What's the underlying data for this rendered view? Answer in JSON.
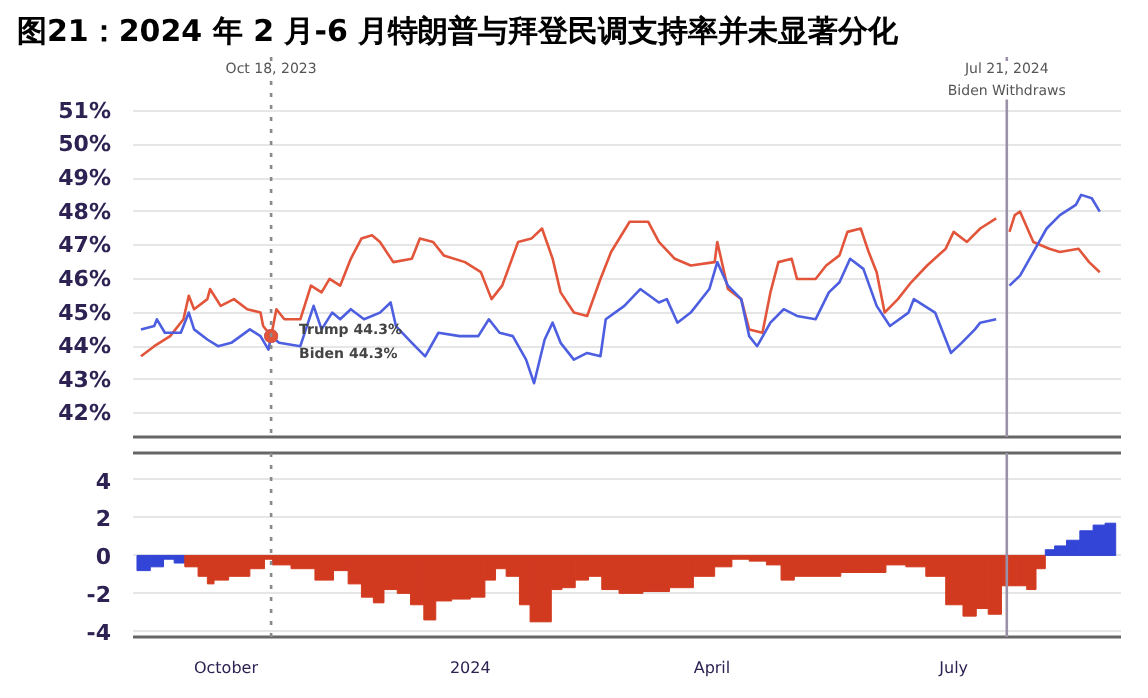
{
  "chart_data": [
    {
      "type": "line",
      "title": "图21：2024 年 2 月-6 月特朗普与拜登民调支持率并未显著分化",
      "xlim": [
        "2023-08-27",
        "2024-09-02"
      ],
      "ylim": [
        41.3,
        52.6
      ],
      "yticks": [
        {
          "value": 42,
          "label": "42%"
        },
        {
          "value": 43,
          "label": "43%"
        },
        {
          "value": 44,
          "label": "44%"
        },
        {
          "value": 45,
          "label": "45%"
        },
        {
          "value": 46,
          "label": "46%"
        },
        {
          "value": 47,
          "label": "47%"
        },
        {
          "value": 48,
          "label": "48%"
        },
        {
          "value": 49,
          "label": "49%"
        },
        {
          "value": 50,
          "label": "50%"
        },
        {
          "value": 51,
          "label": "51%"
        }
      ],
      "grid": "y",
      "tick_labels": "y",
      "series": [
        {
          "color": "#e2553a",
          "x": [
            "2023-08-30",
            "2023-09-04",
            "2023-09-10",
            "2023-09-15",
            "2023-09-17",
            "2023-09-19",
            "2023-09-24",
            "2023-09-25",
            "2023-09-29",
            "2023-10-04",
            "2023-10-09",
            "2023-10-14",
            "2023-10-15",
            "2023-10-18",
            "2023-10-20",
            "2023-10-23",
            "2023-10-29",
            "2023-11-02",
            "2023-11-06",
            "2023-11-09",
            "2023-11-13",
            "2023-11-17",
            "2023-11-21",
            "2023-11-25",
            "2023-11-28",
            "2023-12-03",
            "2023-12-10",
            "2023-12-13",
            "2023-12-18",
            "2023-12-22",
            "2023-12-30",
            "2024-01-05",
            "2024-01-09",
            "2024-01-13",
            "2024-01-19",
            "2024-01-24",
            "2024-01-28",
            "2024-02-01",
            "2024-02-04",
            "2024-02-09",
            "2024-02-14",
            "2024-02-19",
            "2024-02-23",
            "2024-03-01",
            "2024-03-08",
            "2024-03-12",
            "2024-03-18",
            "2024-03-24",
            "2024-04-02",
            "2024-04-03",
            "2024-04-07",
            "2024-04-12",
            "2024-04-15",
            "2024-04-20",
            "2024-04-23",
            "2024-04-26",
            "2024-05-01",
            "2024-05-03",
            "2024-05-10",
            "2024-05-14",
            "2024-05-19",
            "2024-05-22",
            "2024-05-27",
            "2024-05-30",
            "2024-06-02",
            "2024-06-05",
            "2024-06-10",
            "2024-06-15",
            "2024-06-21",
            "2024-06-28",
            "2024-07-01",
            "2024-07-06",
            "2024-07-11",
            "2024-07-17",
            "2024-07-21",
            "2024-07-22",
            "2024-07-24",
            "2024-07-26",
            "2024-07-31",
            "2024-08-06",
            "2024-08-10",
            "2024-08-17",
            "2024-08-21",
            "2024-08-25"
          ],
          "values": [
            43.7,
            44.0,
            44.3,
            44.8,
            45.5,
            45.1,
            45.4,
            45.7,
            45.2,
            45.4,
            45.1,
            45.0,
            44.6,
            44.3,
            45.1,
            44.8,
            44.8,
            45.8,
            45.6,
            46.0,
            45.8,
            46.6,
            47.2,
            47.3,
            47.1,
            46.5,
            46.6,
            47.2,
            47.1,
            46.7,
            46.5,
            46.2,
            45.4,
            45.8,
            47.1,
            47.2,
            47.5,
            46.6,
            45.6,
            45.0,
            44.9,
            46.0,
            46.8,
            47.7,
            47.7,
            47.1,
            46.6,
            46.4,
            46.5,
            47.1,
            45.7,
            45.4,
            44.5,
            44.4,
            45.6,
            46.5,
            46.6,
            46.0,
            46.0,
            46.4,
            46.7,
            47.4,
            47.5,
            46.8,
            46.2,
            45.0,
            45.4,
            45.9,
            46.4,
            46.9,
            47.4,
            47.1,
            47.5,
            47.8,
            null,
            47.4,
            47.9,
            48.0,
            47.1,
            46.9,
            46.8,
            46.9,
            46.5,
            46.2
          ]
        },
        {
          "color": "#4d5fe0",
          "x": [
            "2023-08-30",
            "2023-09-04",
            "2023-09-05",
            "2023-09-08",
            "2023-09-14",
            "2023-09-17",
            "2023-09-19",
            "2023-09-24",
            "2023-09-28",
            "2023-10-03",
            "2023-10-10",
            "2023-10-14",
            "2023-10-17",
            "2023-10-18",
            "2023-10-21",
            "2023-10-29",
            "2023-11-03",
            "2023-11-06",
            "2023-11-10",
            "2023-11-13",
            "2023-11-17",
            "2023-11-22",
            "2023-11-28",
            "2023-12-02",
            "2023-12-04",
            "2023-12-10",
            "2023-12-15",
            "2023-12-20",
            "2023-12-28",
            "2024-01-04",
            "2024-01-08",
            "2024-01-12",
            "2024-01-17",
            "2024-01-22",
            "2024-01-25",
            "2024-01-29",
            "2024-02-01",
            "2024-02-04",
            "2024-02-09",
            "2024-02-14",
            "2024-02-19",
            "2024-02-21",
            "2024-02-28",
            "2024-03-05",
            "2024-03-12",
            "2024-03-15",
            "2024-03-19",
            "2024-03-24",
            "2024-03-31",
            "2024-04-03",
            "2024-04-07",
            "2024-04-12",
            "2024-04-15",
            "2024-04-18",
            "2024-04-23",
            "2024-04-28",
            "2024-05-03",
            "2024-05-10",
            "2024-05-15",
            "2024-05-19",
            "2024-05-23",
            "2024-05-28",
            "2024-06-02",
            "2024-06-07",
            "2024-06-14",
            "2024-06-16",
            "2024-06-24",
            "2024-06-30",
            "2024-07-04",
            "2024-07-09",
            "2024-07-11",
            "2024-07-17",
            "2024-07-21",
            "2024-07-22",
            "2024-07-26",
            "2024-07-31",
            "2024-08-05",
            "2024-08-10",
            "2024-08-16",
            "2024-08-18",
            "2024-08-22",
            "2024-08-25"
          ],
          "values": [
            44.5,
            44.6,
            44.8,
            44.4,
            44.4,
            45.0,
            44.5,
            44.2,
            44.0,
            44.1,
            44.5,
            44.3,
            43.9,
            44.3,
            44.1,
            44.0,
            45.2,
            44.5,
            45.0,
            44.8,
            45.1,
            44.8,
            45.0,
            45.3,
            44.6,
            44.1,
            43.7,
            44.4,
            44.3,
            44.3,
            44.8,
            44.4,
            44.3,
            43.6,
            42.9,
            44.2,
            44.7,
            44.1,
            43.6,
            43.8,
            43.7,
            44.8,
            45.2,
            45.7,
            45.3,
            45.4,
            44.7,
            45.0,
            45.7,
            46.5,
            45.8,
            45.4,
            44.3,
            44.0,
            44.7,
            45.1,
            44.9,
            44.8,
            45.6,
            45.9,
            46.6,
            46.3,
            45.2,
            44.6,
            45.0,
            45.4,
            45.0,
            43.8,
            44.1,
            44.5,
            44.7,
            44.8,
            null,
            45.8,
            46.1,
            46.8,
            47.5,
            47.9,
            48.2,
            48.5,
            48.4,
            48.0
          ]
        }
      ],
      "annotations": [
        {
          "text": "Trump 44.3%",
          "x": "2023-10-18",
          "y": 44.3
        },
        {
          "text": "Biden 44.3%",
          "x": "2023-10-18",
          "y": 44.3
        }
      ],
      "ref_lines": [
        {
          "axis": "x",
          "value": "2023-10-18",
          "label": "Oct 18, 2023",
          "color": "#8a8a8a",
          "line_style": "dotted"
        },
        {
          "axis": "x",
          "value": "2024-07-21",
          "label": "Jul 21, 2024\nBiden Withdraws",
          "color": "#9a90a8",
          "line_style": "solid"
        }
      ]
    },
    {
      "type": "bar",
      "xlim": [
        "2023-08-27",
        "2024-09-02"
      ],
      "ylim": [
        -4.3,
        5.4
      ],
      "yticks": [
        -4,
        -2,
        0,
        2,
        4
      ],
      "grid": "y",
      "xticks": [
        {
          "value": "2023-10-01",
          "label": "October"
        },
        {
          "value": "2024-01-01",
          "label": "2024"
        },
        {
          "value": "2024-04-01",
          "label": "April"
        },
        {
          "value": "2024-07-01",
          "label": "July"
        }
      ],
      "x": [
        "2023-08-31",
        "2023-09-05",
        "2023-09-10",
        "2023-09-13",
        "2023-09-18",
        "2023-09-23",
        "2023-09-25",
        "2023-09-28",
        "2023-10-06",
        "2023-10-14",
        "2023-10-17",
        "2023-10-20",
        "2023-10-31",
        "2023-11-07",
        "2023-11-14",
        "2023-11-18",
        "2023-11-24",
        "2023-11-27",
        "2023-12-02",
        "2023-12-07",
        "2023-12-12",
        "2023-12-17",
        "2023-12-21",
        "2023-12-29",
        "2024-01-04",
        "2024-01-09",
        "2024-01-12",
        "2024-01-17",
        "2024-01-22",
        "2024-01-25",
        "2024-01-30",
        "2024-02-02",
        "2024-02-07",
        "2024-02-12",
        "2024-02-17",
        "2024-02-22",
        "2024-03-01",
        "2024-03-11",
        "2024-03-21",
        "2024-03-29",
        "2024-04-06",
        "2024-04-11",
        "2024-04-19",
        "2024-04-24",
        "2024-04-30",
        "2024-05-04",
        "2024-05-14",
        "2024-05-25",
        "2024-06-02",
        "2024-06-09",
        "2024-06-17",
        "2024-06-24",
        "2024-07-02",
        "2024-07-07",
        "2024-07-12",
        "2024-07-16",
        "2024-07-22",
        "2024-07-27",
        "2024-07-30",
        "2024-08-03",
        "2024-08-06",
        "2024-08-10",
        "2024-08-15",
        "2024-08-20",
        "2024-08-25",
        "2024-08-29"
      ],
      "values": [
        -0.8,
        -0.6,
        -0.2,
        -0.4,
        -0.6,
        -1.1,
        -1.5,
        -1.3,
        -1.1,
        -0.7,
        -0.2,
        -0.5,
        -0.7,
        -1.3,
        -0.8,
        -1.5,
        -2.2,
        -2.5,
        -1.8,
        -2.0,
        -2.6,
        -3.4,
        -2.4,
        -2.3,
        -2.2,
        -1.3,
        -0.7,
        -1.1,
        -2.6,
        -3.5,
        -3.5,
        -1.8,
        -1.7,
        -1.3,
        -1.1,
        -1.8,
        -2.0,
        -1.9,
        -1.7,
        -1.1,
        -0.6,
        -0.2,
        -0.3,
        -0.5,
        -1.3,
        -1.1,
        -1.1,
        -0.9,
        -0.9,
        -0.5,
        -0.6,
        -1.1,
        -2.6,
        -3.2,
        -2.8,
        -3.1,
        -1.6,
        -1.6,
        -1.8,
        -0.7,
        0.3,
        0.5,
        0.8,
        1.3,
        1.6,
        1.7
      ],
      "colors": [
        "#3345d6",
        "#3345d6",
        "#3345d6",
        "#3345d6",
        "#d23a1f",
        "#d23a1f",
        "#d23a1f",
        "#d23a1f",
        "#d23a1f",
        "#d23a1f",
        "#d23a1f",
        "#d23a1f",
        "#d23a1f",
        "#d23a1f",
        "#d23a1f",
        "#d23a1f",
        "#d23a1f",
        "#d23a1f",
        "#d23a1f",
        "#d23a1f",
        "#d23a1f",
        "#d23a1f",
        "#d23a1f",
        "#d23a1f",
        "#d23a1f",
        "#d23a1f",
        "#d23a1f",
        "#d23a1f",
        "#d23a1f",
        "#d23a1f",
        "#d23a1f",
        "#d23a1f",
        "#d23a1f",
        "#d23a1f",
        "#d23a1f",
        "#d23a1f",
        "#d23a1f",
        "#d23a1f",
        "#d23a1f",
        "#d23a1f",
        "#d23a1f",
        "#d23a1f",
        "#d23a1f",
        "#d23a1f",
        "#d23a1f",
        "#d23a1f",
        "#d23a1f",
        "#d23a1f",
        "#d23a1f",
        "#d23a1f",
        "#d23a1f",
        "#d23a1f",
        "#d23a1f",
        "#d23a1f",
        "#d23a1f",
        "#d23a1f",
        "#d23a1f",
        "#d23a1f",
        "#d23a1f",
        "#d23a1f",
        "#3345d6",
        "#3345d6",
        "#3345d6",
        "#3345d6",
        "#3345d6",
        "#3345d6"
      ],
      "ref_lines": [
        {
          "axis": "x",
          "value": "2023-10-18",
          "color": "#8a8a8a",
          "line_style": "dotted"
        },
        {
          "axis": "x",
          "value": "2024-07-21",
          "color": "#9a90a8",
          "line_style": "solid"
        }
      ]
    }
  ]
}
